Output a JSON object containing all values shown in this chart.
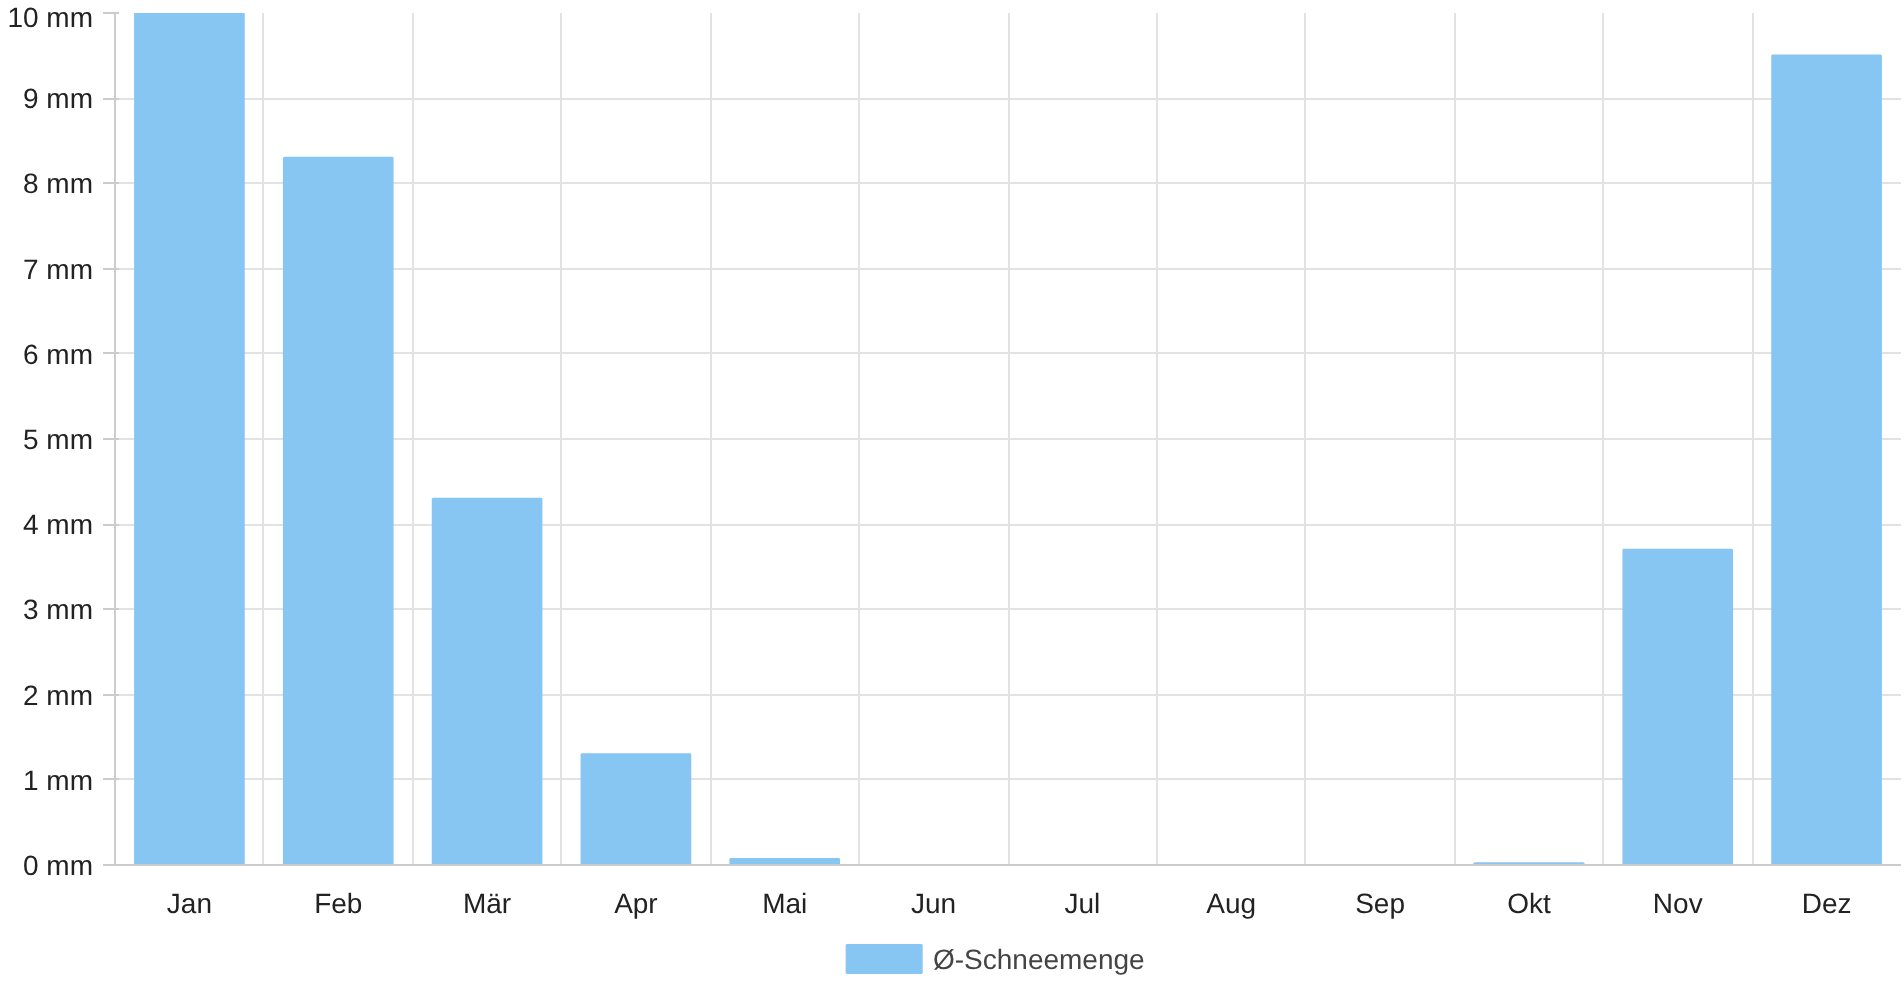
{
  "chart_data": {
    "type": "bar",
    "categories": [
      "Jan",
      "Feb",
      "Mär",
      "Apr",
      "Mai",
      "Jun",
      "Jul",
      "Aug",
      "Sep",
      "Okt",
      "Nov",
      "Dez"
    ],
    "series": [
      {
        "name": "Ø-Schneemenge",
        "color": "#87c6f2",
        "values": [
          10,
          8.3,
          4.3,
          1.3,
          0.07,
          0,
          0,
          0,
          0,
          0.02,
          3.7,
          9.5
        ]
      }
    ],
    "ylim": [
      0,
      10
    ],
    "yticks": [
      {
        "value": 0,
        "label": "0 mm"
      },
      {
        "value": 1,
        "label": "1 mm"
      },
      {
        "value": 2,
        "label": "2 mm"
      },
      {
        "value": 3,
        "label": "3 mm"
      },
      {
        "value": 4,
        "label": "4 mm"
      },
      {
        "value": 5,
        "label": "5 mm"
      },
      {
        "value": 6,
        "label": "6 mm"
      },
      {
        "value": 7,
        "label": "7 mm"
      },
      {
        "value": 8,
        "label": "8 mm"
      },
      {
        "value": 9,
        "label": "9 mm"
      },
      {
        "value": 10,
        "label": "10 mm"
      }
    ],
    "grid": true,
    "legend": "bottom"
  }
}
